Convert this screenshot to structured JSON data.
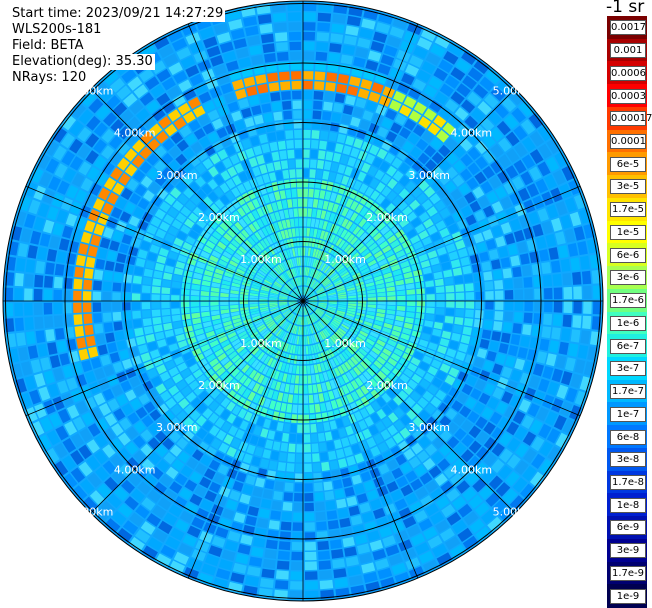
{
  "header": {
    "start_time": "Start time: 2023/09/21 14:27:29",
    "instrument": "WLS200s-181",
    "field": "Field: BETA",
    "elevation": "Elevation(deg): 35.30",
    "nrays": "NRays: 120"
  },
  "unit_label": "-1 sr",
  "range_ring_labels": [
    "1.00km",
    "2.00km",
    "3.00km",
    "4.00km",
    "5.00km"
  ],
  "colorbar": {
    "labels": [
      "0.0017",
      "0.001",
      "0.0006",
      "0.0003",
      "0.00017",
      "0.0001",
      "6e-5",
      "3e-5",
      "1.7e-5",
      "1e-5",
      "6e-6",
      "3e-6",
      "1.7e-6",
      "1e-6",
      "6e-7",
      "3e-7",
      "1.7e-7",
      "1e-7",
      "6e-8",
      "3e-8",
      "1.7e-8",
      "1e-8",
      "6e-9",
      "3e-9",
      "1.7e-9",
      "1e-9"
    ],
    "colors": [
      "#7a0000",
      "#a80000",
      "#d40000",
      "#ff0000",
      "#ff3a00",
      "#ff7000",
      "#ff9a00",
      "#ffc000",
      "#ffe400",
      "#ffff00",
      "#d8ff20",
      "#a8ff50",
      "#70ff80",
      "#40ffc0",
      "#20f0e0",
      "#00d8ff",
      "#00b8ff",
      "#0098ff",
      "#0078ff",
      "#0058f0",
      "#0038e0",
      "#0020d0",
      "#0010b0",
      "#000090",
      "#000070",
      "#000050"
    ]
  }
}
